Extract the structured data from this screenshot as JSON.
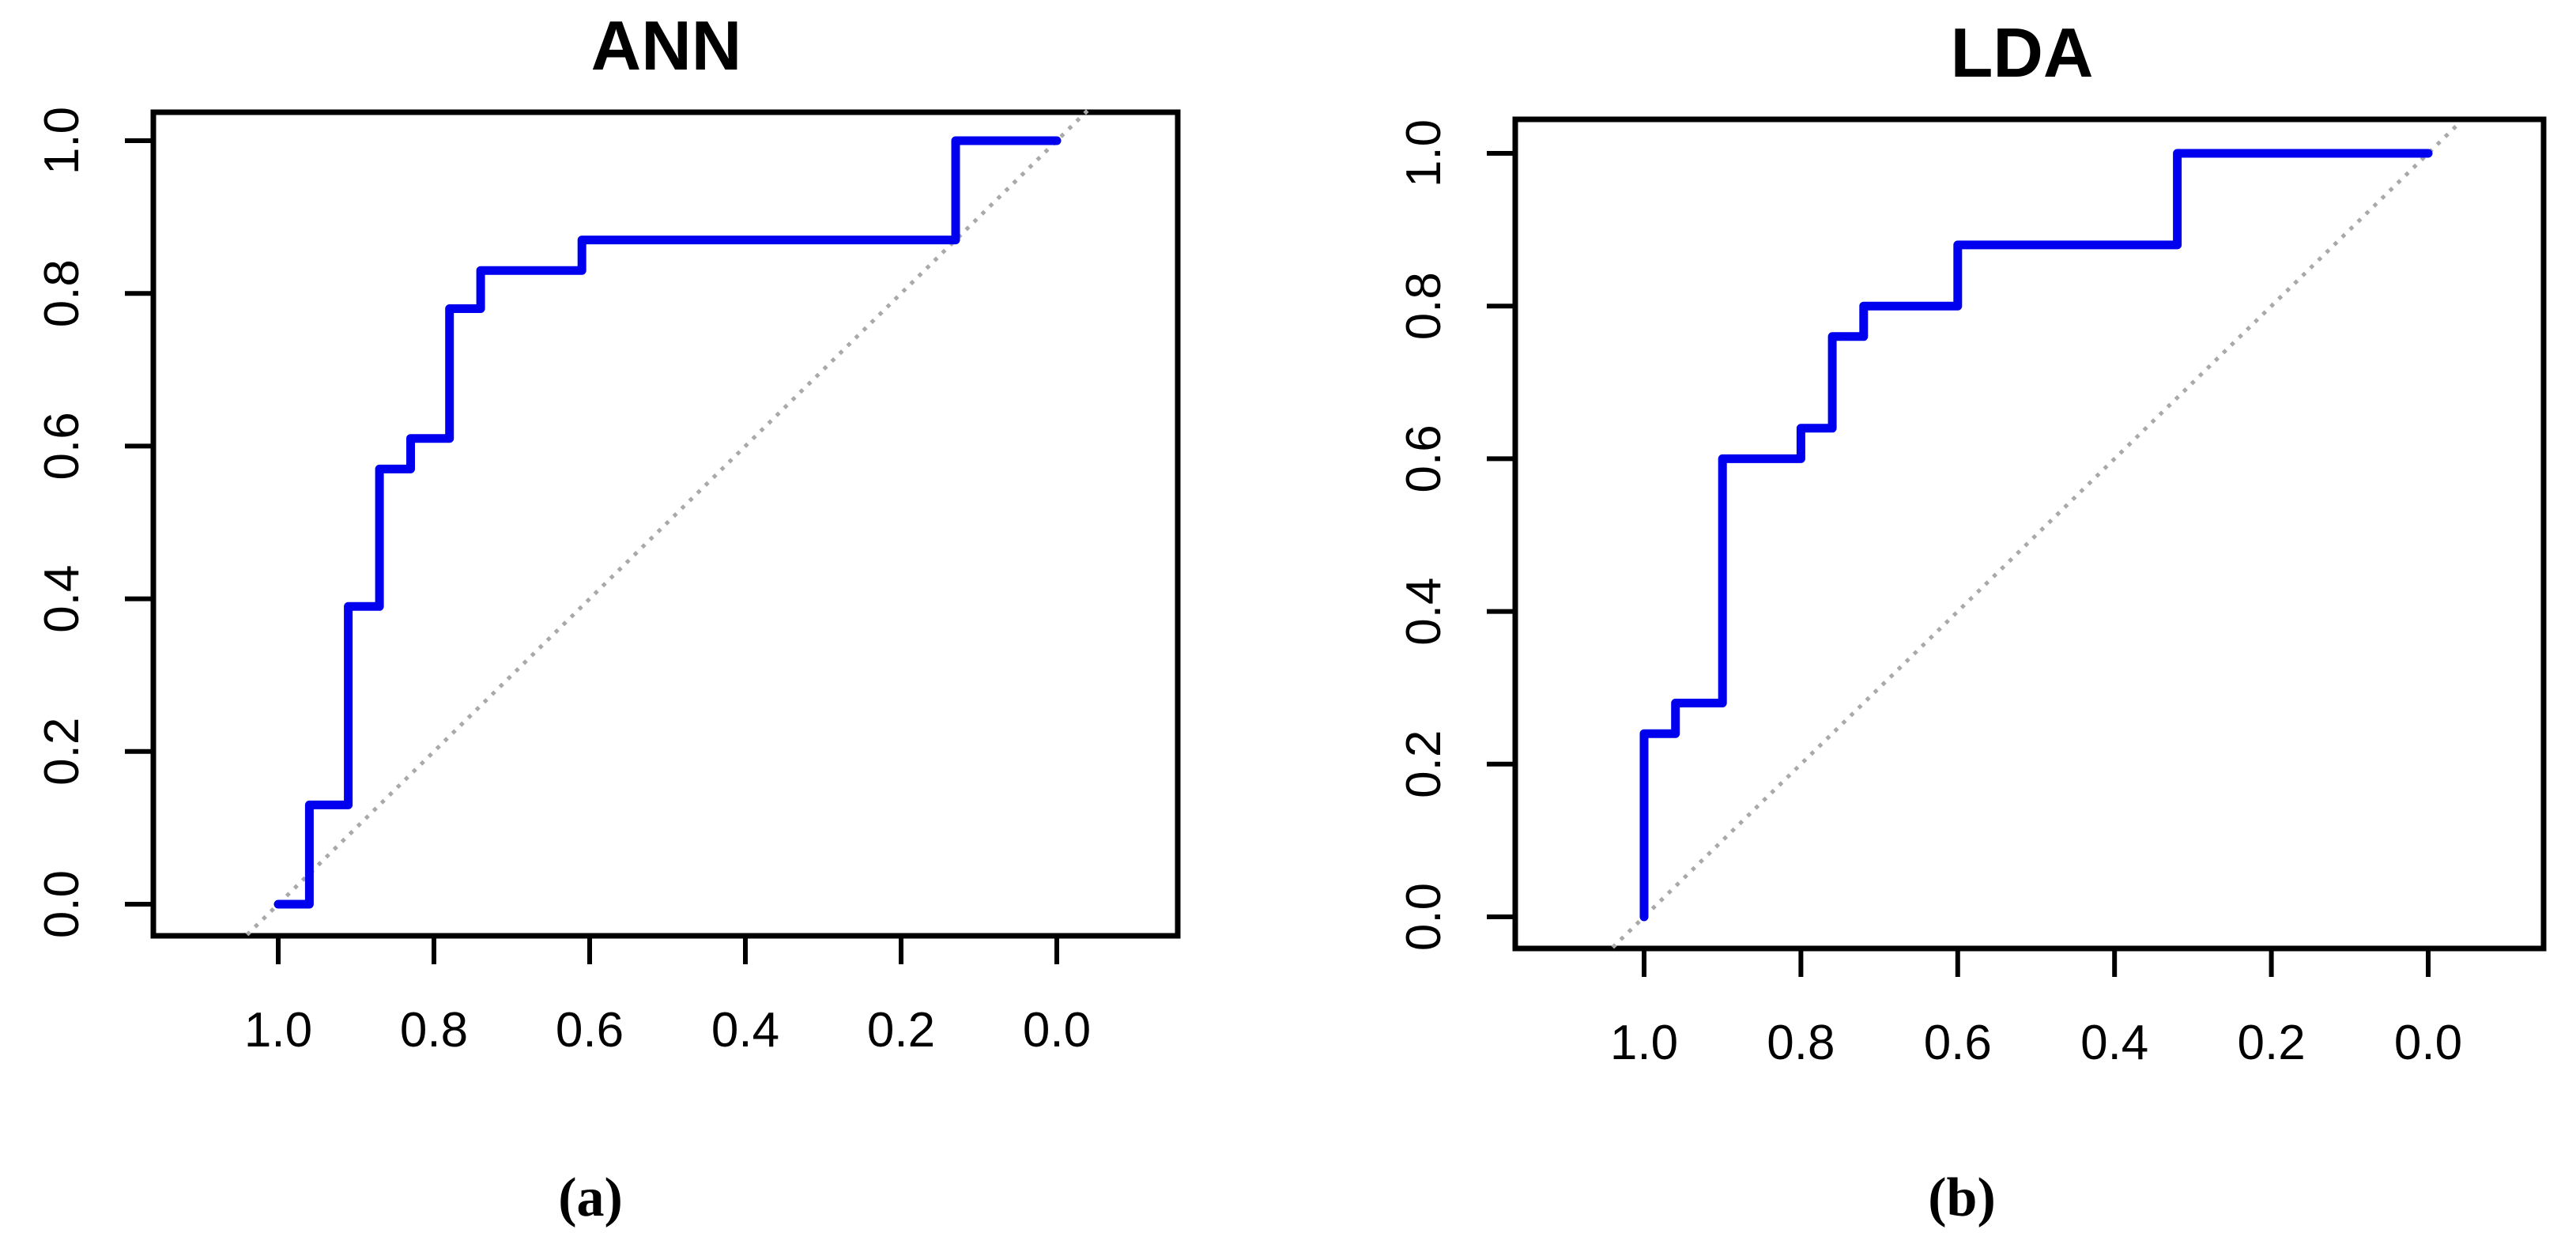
{
  "figure": {
    "background_color": "#FFFFFF",
    "text_color": "#000000"
  },
  "chart_data": [
    {
      "type": "line",
      "variant": "roc_step_curve",
      "title": "ANN",
      "caption": "(a)",
      "xlabel": "",
      "ylabel": "",
      "grid": false,
      "legend": "none",
      "x_axis": {
        "reversed": true,
        "tick_labels": [
          "1.0",
          "0.8",
          "0.6",
          "0.4",
          "0.2",
          "0.0"
        ],
        "tick_values": [
          1.0,
          0.8,
          0.6,
          0.4,
          0.2,
          0.0
        ],
        "range_shown": [
          1.15,
          -0.15
        ]
      },
      "y_axis": {
        "tick_labels": [
          "0.0",
          "0.2",
          "0.4",
          "0.6",
          "0.8",
          "1.0"
        ],
        "tick_values": [
          0.0,
          0.2,
          0.4,
          0.6,
          0.8,
          1.0
        ],
        "range_shown": [
          -0.04,
          1.04
        ]
      },
      "series": [
        {
          "name": "ROC curve (ANN)",
          "color": "#0000EE",
          "points_spec_sens": [
            [
              1.0,
              0.0
            ],
            [
              0.96,
              0.0
            ],
            [
              0.96,
              0.13
            ],
            [
              0.91,
              0.13
            ],
            [
              0.91,
              0.39
            ],
            [
              0.87,
              0.39
            ],
            [
              0.87,
              0.57
            ],
            [
              0.83,
              0.57
            ],
            [
              0.83,
              0.61
            ],
            [
              0.78,
              0.61
            ],
            [
              0.78,
              0.78
            ],
            [
              0.74,
              0.78
            ],
            [
              0.74,
              0.83
            ],
            [
              0.61,
              0.83
            ],
            [
              0.61,
              0.87
            ],
            [
              0.13,
              0.87
            ],
            [
              0.13,
              1.0
            ],
            [
              0.0,
              1.0
            ]
          ]
        }
      ],
      "reference_line": {
        "name": "chance diagonal",
        "color": "#A9A9A9",
        "style": "dotted",
        "from_spec_sens": [
          1.04,
          -0.04
        ],
        "to_spec_sens": [
          -0.04,
          1.04
        ]
      }
    },
    {
      "type": "line",
      "variant": "roc_step_curve",
      "title": "LDA",
      "caption": "(b)",
      "xlabel": "",
      "ylabel": "",
      "grid": false,
      "legend": "none",
      "x_axis": {
        "reversed": true,
        "tick_labels": [
          "1.0",
          "0.8",
          "0.6",
          "0.4",
          "0.2",
          "0.0"
        ],
        "tick_values": [
          1.0,
          0.8,
          0.6,
          0.4,
          0.2,
          0.0
        ],
        "range_shown": [
          1.15,
          -0.15
        ]
      },
      "y_axis": {
        "tick_labels": [
          "0.0",
          "0.2",
          "0.4",
          "0.6",
          "0.8",
          "1.0"
        ],
        "tick_values": [
          0.0,
          0.2,
          0.4,
          0.6,
          0.8,
          1.0
        ],
        "range_shown": [
          -0.04,
          1.04
        ]
      },
      "series": [
        {
          "name": "ROC curve (LDA)",
          "color": "#0000EE",
          "points_spec_sens": [
            [
              1.0,
              0.0
            ],
            [
              1.0,
              0.24
            ],
            [
              0.96,
              0.24
            ],
            [
              0.96,
              0.28
            ],
            [
              0.9,
              0.28
            ],
            [
              0.9,
              0.6
            ],
            [
              0.8,
              0.6
            ],
            [
              0.8,
              0.64
            ],
            [
              0.76,
              0.64
            ],
            [
              0.76,
              0.76
            ],
            [
              0.72,
              0.76
            ],
            [
              0.72,
              0.8
            ],
            [
              0.6,
              0.8
            ],
            [
              0.6,
              0.88
            ],
            [
              0.32,
              0.88
            ],
            [
              0.32,
              1.0
            ],
            [
              0.0,
              1.0
            ]
          ]
        }
      ],
      "reference_line": {
        "name": "chance diagonal",
        "color": "#A9A9A9",
        "style": "dotted",
        "from_spec_sens": [
          1.04,
          -0.04
        ],
        "to_spec_sens": [
          -0.04,
          1.04
        ]
      }
    }
  ]
}
